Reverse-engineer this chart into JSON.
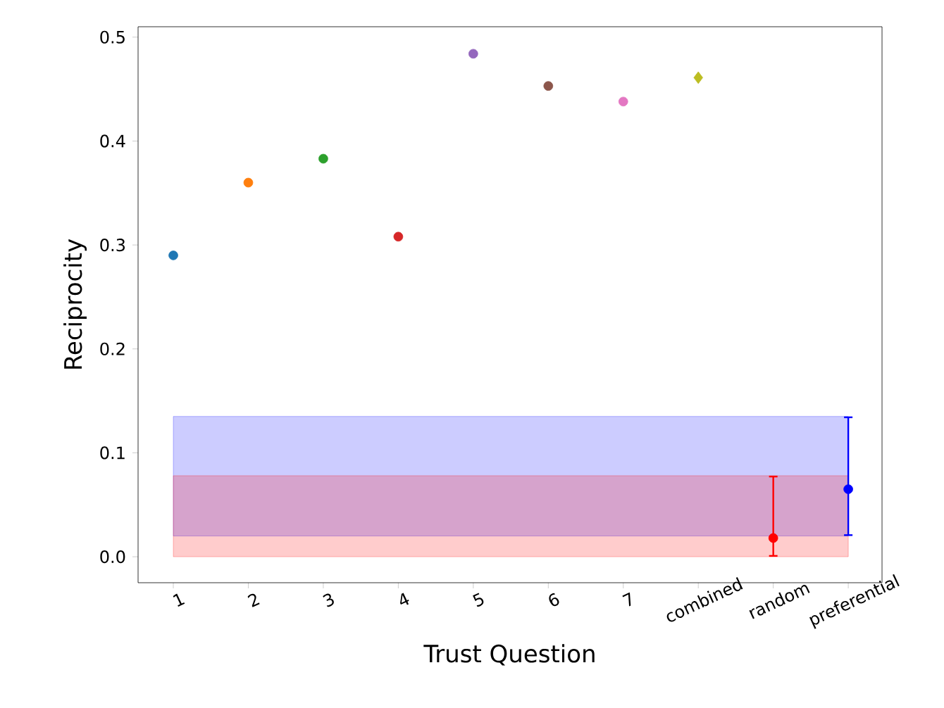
{
  "chart_data": {
    "type": "scatter",
    "xlabel": "Trust Question",
    "ylabel": "Reciprocity",
    "categories": [
      "1",
      "2",
      "3",
      "4",
      "5",
      "6",
      "7",
      "combined",
      "random",
      "preferential"
    ],
    "series": [
      {
        "values": [
          0.29,
          0.36,
          0.383,
          0.308,
          0.484,
          0.453,
          0.438,
          null,
          null,
          null
        ],
        "colors": [
          "#1f77b4",
          "#ff7f0e",
          "#2ca02c",
          "#d62728",
          "#9467bd",
          "#8c564b",
          "#e377c2",
          null,
          null,
          null
        ],
        "marker": "circle"
      },
      {
        "values": [
          null,
          null,
          null,
          null,
          null,
          null,
          null,
          0.461,
          null,
          null
        ],
        "color": "#bcbd22",
        "marker": "diamond"
      },
      {
        "values": [
          null,
          null,
          null,
          null,
          null,
          null,
          null,
          null,
          0.018,
          null
        ],
        "color": "#ff0000",
        "marker": "circle",
        "errors": [
          null,
          null,
          null,
          null,
          null,
          null,
          null,
          null,
          [
            0.0,
            0.078
          ],
          null
        ]
      },
      {
        "values": [
          null,
          null,
          null,
          null,
          null,
          null,
          null,
          null,
          null,
          0.065
        ],
        "color": "#0000ff",
        "marker": "circle",
        "errors": [
          null,
          null,
          null,
          null,
          null,
          null,
          null,
          null,
          null,
          [
            0.02,
            0.135
          ]
        ]
      }
    ],
    "bands": [
      {
        "axis": "y",
        "from": 0.02,
        "to": 0.135,
        "color": "#0000ff"
      },
      {
        "axis": "y",
        "from": 0.0,
        "to": 0.078,
        "color": "#ff0000"
      }
    ],
    "ylim": [
      -0.025,
      0.51
    ],
    "yticks": [
      {
        "value": 0,
        "label": "0.0"
      },
      {
        "value": 0.1,
        "label": "0.1"
      },
      {
        "value": 0.2,
        "label": "0.2"
      },
      {
        "value": 0.3,
        "label": "0.3"
      },
      {
        "value": 0.4,
        "label": "0.4"
      },
      {
        "value": 0.5,
        "label": "0.5"
      }
    ],
    "grid": false
  }
}
